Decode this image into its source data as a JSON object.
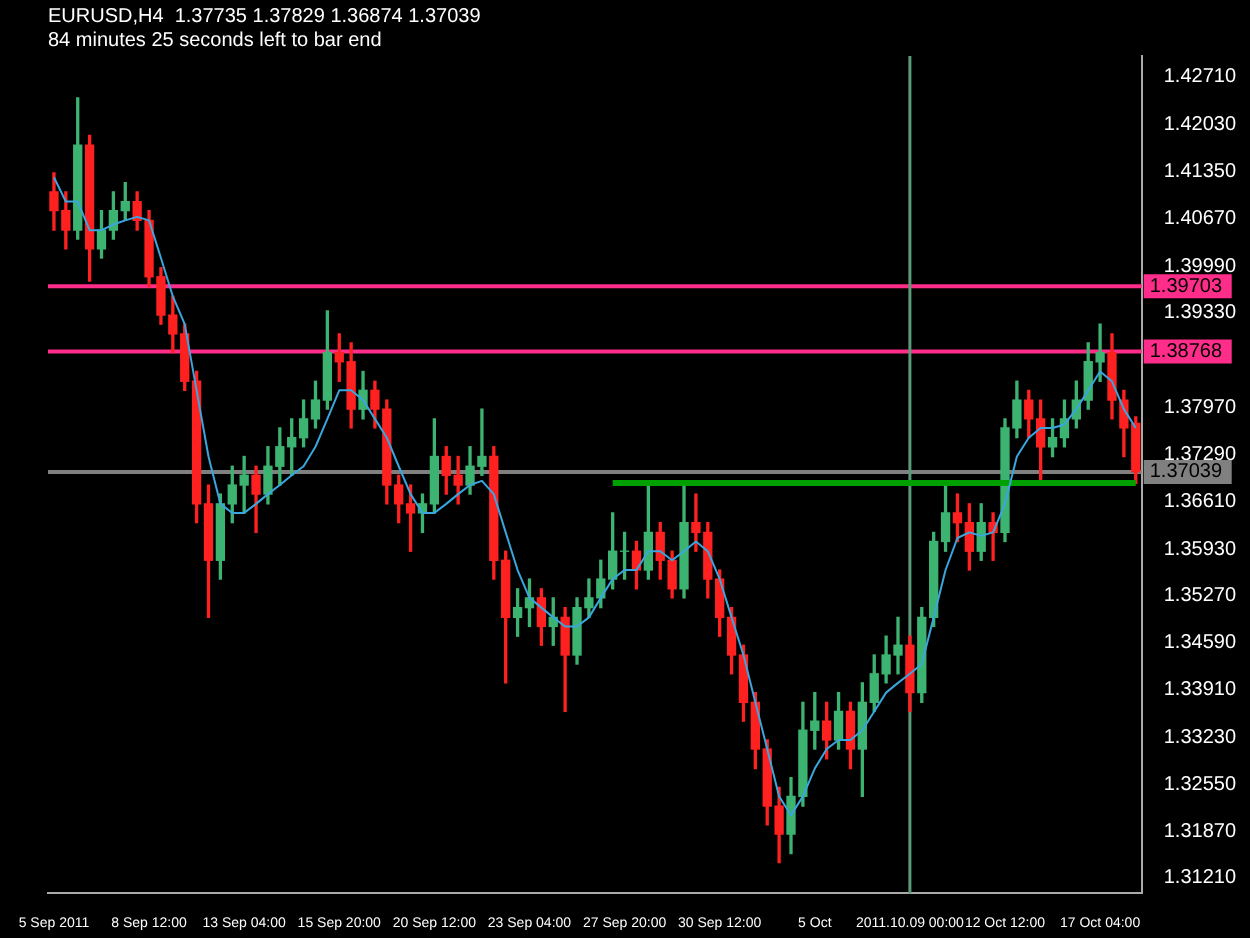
{
  "chart_data": {
    "type": "candlestick",
    "title": "EURUSD,H4  1.37735 1.37829 1.36874 1.37039",
    "subtitle": "84 minutes 25 seconds left to bar end",
    "categories": [
      "5 Sep 2011",
      null,
      null,
      null,
      null,
      null,
      null,
      null,
      "8 Sep 12:00",
      null,
      null,
      null,
      null,
      null,
      null,
      null,
      "13 Sep 04:00",
      null,
      null,
      null,
      null,
      null,
      null,
      null,
      "15 Sep 20:00",
      null,
      null,
      null,
      null,
      null,
      null,
      null,
      "20 Sep 12:00",
      null,
      null,
      null,
      null,
      null,
      null,
      null,
      "23 Sep 04:00",
      null,
      null,
      null,
      null,
      null,
      null,
      null,
      "27 Sep 20:00",
      null,
      null,
      null,
      null,
      null,
      null,
      null,
      "30 Sep 12:00",
      null,
      null,
      null,
      null,
      null,
      null,
      null,
      "5 Oct",
      null,
      null,
      null,
      null,
      null,
      null,
      null,
      "2011.10.09 00:00",
      null,
      null,
      null,
      null,
      null,
      null,
      null,
      "12 Oct 12:00",
      null,
      null,
      null,
      null,
      null,
      null,
      null,
      "17 Oct 04:00",
      null,
      null,
      null
    ],
    "ohlc": [
      [
        1.4106,
        1.4133,
        1.4051,
        1.4079
      ],
      [
        1.4079,
        1.4106,
        1.4024,
        1.4051
      ],
      [
        1.4051,
        1.4241,
        1.4038,
        1.4173
      ],
      [
        1.4173,
        1.4187,
        1.3978,
        1.4024
      ],
      [
        1.4024,
        1.4079,
        1.4011,
        1.4051
      ],
      [
        1.4051,
        1.4106,
        1.4038,
        1.4079
      ],
      [
        1.4079,
        1.4119,
        1.4065,
        1.4092
      ],
      [
        1.4092,
        1.4106,
        1.4051,
        1.4065
      ],
      [
        1.4065,
        1.4079,
        1.397,
        1.3984
      ],
      [
        1.3984,
        1.3997,
        1.3916,
        1.3929
      ],
      [
        1.3929,
        1.3956,
        1.3875,
        1.3902
      ],
      [
        1.3902,
        1.3916,
        1.3821,
        1.3834
      ],
      [
        1.3834,
        1.3848,
        1.3631,
        1.3658
      ],
      [
        1.3658,
        1.3685,
        1.3495,
        1.3577
      ],
      [
        1.3577,
        1.3672,
        1.355,
        1.3658
      ],
      [
        1.3658,
        1.3712,
        1.3631,
        1.3685
      ],
      [
        1.3685,
        1.3726,
        1.3645,
        1.3699
      ],
      [
        1.3699,
        1.3712,
        1.3617,
        1.3672
      ],
      [
        1.3672,
        1.374,
        1.3658,
        1.3712
      ],
      [
        1.3712,
        1.3767,
        1.3685,
        1.374
      ],
      [
        1.374,
        1.378,
        1.3699,
        1.3753
      ],
      [
        1.3753,
        1.3807,
        1.374,
        1.378
      ],
      [
        1.378,
        1.3834,
        1.3767,
        1.3807
      ],
      [
        1.3807,
        1.3935,
        1.3794,
        1.3875
      ],
      [
        1.3875,
        1.3902,
        1.3834,
        1.3862
      ],
      [
        1.3862,
        1.3889,
        1.3767,
        1.3794
      ],
      [
        1.3794,
        1.3848,
        1.378,
        1.3821
      ],
      [
        1.3821,
        1.3834,
        1.3767,
        1.3794
      ],
      [
        1.3794,
        1.3807,
        1.3658,
        1.3685
      ],
      [
        1.3685,
        1.3699,
        1.3631,
        1.3658
      ],
      [
        1.3658,
        1.3685,
        1.359,
        1.3645
      ],
      [
        1.3645,
        1.3672,
        1.3617,
        1.3658
      ],
      [
        1.3658,
        1.378,
        1.3645,
        1.3726
      ],
      [
        1.3726,
        1.374,
        1.3672,
        1.3699
      ],
      [
        1.3699,
        1.3726,
        1.3658,
        1.3685
      ],
      [
        1.3685,
        1.374,
        1.3672,
        1.3712
      ],
      [
        1.3712,
        1.3794,
        1.3699,
        1.3726
      ],
      [
        1.3726,
        1.374,
        1.355,
        1.3577
      ],
      [
        1.3577,
        1.359,
        1.3401,
        1.3495
      ],
      [
        1.3495,
        1.3536,
        1.3468,
        1.3509
      ],
      [
        1.3509,
        1.355,
        1.3482,
        1.3523
      ],
      [
        1.3523,
        1.3536,
        1.3455,
        1.3482
      ],
      [
        1.3482,
        1.3523,
        1.3455,
        1.3495
      ],
      [
        1.3495,
        1.3509,
        1.336,
        1.3441
      ],
      [
        1.3441,
        1.3523,
        1.3428,
        1.3509
      ],
      [
        1.3509,
        1.355,
        1.3495,
        1.3523
      ],
      [
        1.3523,
        1.3577,
        1.3509,
        1.355
      ],
      [
        1.355,
        1.3645,
        1.3536,
        1.359
      ],
      [
        1.359,
        1.3617,
        1.355,
        1.359
      ],
      [
        1.359,
        1.3604,
        1.3536,
        1.3563
      ],
      [
        1.3563,
        1.3688,
        1.355,
        1.3617
      ],
      [
        1.3617,
        1.3631,
        1.355,
        1.3577
      ],
      [
        1.3577,
        1.359,
        1.3523,
        1.3536
      ],
      [
        1.3536,
        1.3685,
        1.3523,
        1.3631
      ],
      [
        1.3631,
        1.3672,
        1.359,
        1.3617
      ],
      [
        1.3617,
        1.3631,
        1.3523,
        1.355
      ],
      [
        1.355,
        1.3563,
        1.3468,
        1.3495
      ],
      [
        1.3495,
        1.3509,
        1.3414,
        1.3441
      ],
      [
        1.3441,
        1.3455,
        1.3346,
        1.3373
      ],
      [
        1.3373,
        1.3387,
        1.3278,
        1.3306
      ],
      [
        1.3306,
        1.3319,
        1.3197,
        1.3224
      ],
      [
        1.3224,
        1.3251,
        1.3143,
        1.3184
      ],
      [
        1.3184,
        1.3265,
        1.3156,
        1.3238
      ],
      [
        1.3238,
        1.3373,
        1.3224,
        1.3333
      ],
      [
        1.3333,
        1.3387,
        1.3306,
        1.3346
      ],
      [
        1.3346,
        1.3373,
        1.3292,
        1.3319
      ],
      [
        1.3319,
        1.3387,
        1.3306,
        1.336
      ],
      [
        1.336,
        1.3373,
        1.3278,
        1.3306
      ],
      [
        1.3306,
        1.3401,
        1.3238,
        1.3373
      ],
      [
        1.3373,
        1.3441,
        1.336,
        1.3414
      ],
      [
        1.3414,
        1.3468,
        1.3401,
        1.3441
      ],
      [
        1.3441,
        1.3495,
        1.3414,
        1.3455
      ],
      [
        1.3455,
        1.3468,
        1.336,
        1.3387
      ],
      [
        1.3387,
        1.3509,
        1.3373,
        1.3495
      ],
      [
        1.3495,
        1.3617,
        1.3482,
        1.3604
      ],
      [
        1.3604,
        1.3685,
        1.359,
        1.3645
      ],
      [
        1.3645,
        1.3672,
        1.3604,
        1.3631
      ],
      [
        1.3631,
        1.3658,
        1.3563,
        1.359
      ],
      [
        1.359,
        1.3658,
        1.3577,
        1.3631
      ],
      [
        1.3631,
        1.3645,
        1.3577,
        1.3617
      ],
      [
        1.3617,
        1.378,
        1.3604,
        1.3767
      ],
      [
        1.3767,
        1.3834,
        1.3753,
        1.3807
      ],
      [
        1.3807,
        1.3821,
        1.3753,
        1.378
      ],
      [
        1.378,
        1.3807,
        1.3685,
        1.374
      ],
      [
        1.374,
        1.378,
        1.3726,
        1.3753
      ],
      [
        1.3753,
        1.3807,
        1.374,
        1.378
      ],
      [
        1.378,
        1.3834,
        1.3767,
        1.3807
      ],
      [
        1.3807,
        1.3889,
        1.3794,
        1.3862
      ],
      [
        1.3862,
        1.3916,
        1.3834,
        1.3875
      ],
      [
        1.3875,
        1.3902,
        1.378,
        1.3807
      ],
      [
        1.3807,
        1.3821,
        1.3726,
        1.3767
      ],
      [
        1.37735,
        1.37829,
        1.36874,
        1.37039
      ]
    ],
    "colors": [
      "#ff2020",
      "#ff2020",
      "#3cb371",
      "#ff2020",
      "#3cb371",
      "#3cb371",
      "#3cb371",
      "#ff2020",
      "#ff2020",
      "#ff2020",
      "#ff2020",
      "#ff2020",
      "#ff2020",
      "#ff2020",
      "#3cb371",
      "#3cb371",
      "#3cb371",
      "#ff2020",
      "#3cb371",
      "#3cb371",
      "#3cb371",
      "#3cb371",
      "#3cb371",
      "#3cb371",
      "#ff2020",
      "#ff2020",
      "#3cb371",
      "#ff2020",
      "#ff2020",
      "#ff2020",
      "#ff2020",
      "#3cb371",
      "#3cb371",
      "#ff2020",
      "#ff2020",
      "#3cb371",
      "#3cb371",
      "#ff2020",
      "#ff2020",
      "#3cb371",
      "#3cb371",
      "#ff2020",
      "#3cb371",
      "#ff2020",
      "#3cb371",
      "#3cb371",
      "#3cb371",
      "#3cb371",
      "#3cb371",
      "#ff2020",
      "#3cb371",
      "#ff2020",
      "#ff2020",
      "#3cb371",
      "#ff2020",
      "#ff2020",
      "#ff2020",
      "#ff2020",
      "#ff2020",
      "#ff2020",
      "#ff2020",
      "#ff2020",
      "#3cb371",
      "#3cb371",
      "#3cb371",
      "#ff2020",
      "#3cb371",
      "#ff2020",
      "#3cb371",
      "#3cb371",
      "#3cb371",
      "#3cb371",
      "#ff2020",
      "#3cb371",
      "#3cb371",
      "#3cb371",
      "#ff2020",
      "#ff2020",
      "#3cb371",
      "#ff2020",
      "#3cb371",
      "#3cb371",
      "#ff2020",
      "#ff2020",
      "#3cb371",
      "#3cb371",
      "#3cb371",
      "#3cb371",
      "#3cb371",
      "#ff2020",
      "#ff2020",
      "#ff2020"
    ],
    "series": [
      {
        "type": "line",
        "color": "#3aa6dd",
        "values": [
          1.4127,
          1.4092,
          1.4092,
          1.4051,
          1.4051,
          1.4059,
          1.4065,
          1.407,
          1.4065,
          1.4011,
          1.3956,
          1.3916,
          1.3821,
          1.3726,
          1.3658,
          1.3645,
          1.3645,
          1.3658,
          1.3672,
          1.3685,
          1.3699,
          1.3712,
          1.374,
          1.378,
          1.3821,
          1.3821,
          1.3807,
          1.378,
          1.3753,
          1.3712,
          1.3672,
          1.3645,
          1.3645,
          1.3658,
          1.3672,
          1.3685,
          1.3691,
          1.3672,
          1.3617,
          1.3563,
          1.3523,
          1.3509,
          1.3495,
          1.3482,
          1.3482,
          1.3495,
          1.3523,
          1.355,
          1.3563,
          1.3563,
          1.359,
          1.359,
          1.3577,
          1.359,
          1.3604,
          1.359,
          1.355,
          1.3495,
          1.3441,
          1.3373,
          1.3306,
          1.3238,
          1.3211,
          1.3238,
          1.3278,
          1.3306,
          1.3319,
          1.3319,
          1.3333,
          1.336,
          1.3387,
          1.3401,
          1.3414,
          1.3428,
          1.3495,
          1.3563,
          1.3609,
          1.3617,
          1.3612,
          1.3617,
          1.3658,
          1.3726,
          1.3753,
          1.3767,
          1.3767,
          1.3772,
          1.3794,
          1.3821,
          1.3848,
          1.3834,
          1.3794,
          1.3767
        ]
      },
      {
        "type": "line",
        "color": "#00a000",
        "values": [
          null,
          null,
          null,
          null,
          null,
          null,
          null,
          null,
          null,
          null,
          null,
          null,
          null,
          null,
          null,
          null,
          null,
          null,
          null,
          null,
          null,
          null,
          null,
          null,
          null,
          null,
          null,
          null,
          null,
          null,
          null,
          null,
          null,
          null,
          null,
          null,
          null,
          null,
          null,
          null,
          null,
          null,
          null,
          null,
          null,
          null,
          null,
          1.3688,
          1.3688,
          1.3688,
          1.3688,
          1.3688,
          1.3688,
          1.3688,
          1.3688,
          1.3688,
          1.3688,
          1.3688,
          1.3688,
          1.3688,
          1.3688,
          1.3688,
          1.3688,
          1.3688,
          1.3688,
          1.3688,
          1.3688,
          1.3688,
          1.3688,
          1.3688,
          1.3688,
          1.3688,
          1.3688,
          1.3688,
          1.3688,
          1.3688,
          1.3688,
          1.3688,
          1.3688,
          1.3688,
          1.3688,
          1.3688,
          1.3688,
          1.3688,
          1.3688,
          1.3688,
          1.3688,
          1.3688,
          1.3688,
          1.3688,
          1.3688,
          1.3688
        ]
      }
    ],
    "ylim": [
      1.3099,
      1.4301
    ],
    "yticks": [
      {
        "value": 1.4271,
        "label": "1.42710"
      },
      {
        "value": 1.4203,
        "label": "1.42030"
      },
      {
        "value": 1.4135,
        "label": "1.41350"
      },
      {
        "value": 1.4067,
        "label": "1.40670"
      },
      {
        "value": 1.3999,
        "label": "1.39990"
      },
      {
        "value": 1.3933,
        "label": "1.39330"
      },
      {
        "value": 1.3797,
        "label": "1.37970"
      },
      {
        "value": 1.3729,
        "label": "1.37290"
      },
      {
        "value": 1.3661,
        "label": "1.36610"
      },
      {
        "value": 1.3593,
        "label": "1.35930"
      },
      {
        "value": 1.3527,
        "label": "1.35270"
      },
      {
        "value": 1.3459,
        "label": "1.34590"
      },
      {
        "value": 1.3391,
        "label": "1.33910"
      },
      {
        "value": 1.3323,
        "label": "1.33230"
      },
      {
        "value": 1.3255,
        "label": "1.32550"
      },
      {
        "value": 1.3187,
        "label": "1.31870"
      },
      {
        "value": 1.3121,
        "label": "1.31210"
      }
    ],
    "ref_lines": [
      {
        "axis": "y",
        "value": 1.39703,
        "label": "1.39703",
        "color": "#ff2d8a"
      },
      {
        "axis": "y",
        "value": 1.38768,
        "label": "1.38768",
        "color": "#ff2d8a"
      },
      {
        "axis": "y",
        "value": 1.37039,
        "label": "1.37039",
        "color": "#808080"
      },
      {
        "axis": "x",
        "value": "2011.10.09 00:00",
        "color": "#5a9a78"
      }
    ]
  }
}
